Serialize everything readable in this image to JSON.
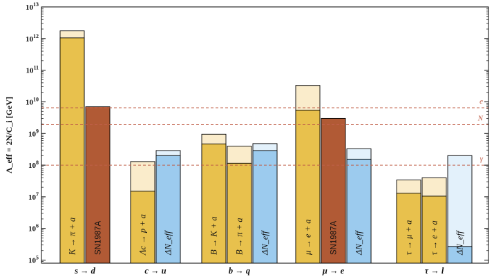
{
  "chart_data": {
    "type": "bar",
    "ylabel": "Λ_eff = 2N/C_i [GeV]",
    "yscale": "log",
    "ylim": [
      80000,
      10000000000000
    ],
    "ytick_exponents": [
      5,
      6,
      7,
      8,
      9,
      10,
      11,
      12,
      13
    ],
    "ytick_base": "10",
    "colors": {
      "meson_bound": "#e8c14d",
      "meson_projection": "#faeccb",
      "sn1987a": "#b15a35",
      "neff_bound": "#9ccbee",
      "neff_projection": "#e3f1fb",
      "reference_line": "#c0604a"
    },
    "reference_lines": [
      {
        "label": "e",
        "value": 6500000000
      },
      {
        "label": "N",
        "value": 1900000000
      },
      {
        "label": "γ",
        "value": 100000000
      }
    ],
    "groups": [
      {
        "category": "s → d",
        "bars": [
          {
            "label": "K → π + a",
            "kind": "meson",
            "value": 1050000000000,
            "projection": 1750000000000
          },
          {
            "label": "SN1987A",
            "kind": "sn1987a",
            "value": 7000000000,
            "projection": null
          }
        ]
      },
      {
        "category": "c → u",
        "bars": [
          {
            "label": "Λc → p + a",
            "kind": "meson",
            "value": 15000000,
            "projection": 130000000
          },
          {
            "label": "ΔN_eff",
            "kind": "neff",
            "value": 200000000,
            "projection": 290000000
          }
        ]
      },
      {
        "category": "b → q",
        "bars": [
          {
            "label": "B → K + a",
            "kind": "meson",
            "value": 470000000,
            "projection": 950000000
          },
          {
            "label": "B → π + a",
            "kind": "meson",
            "value": 115000000,
            "projection": 400000000
          },
          {
            "label": "ΔN_eff",
            "kind": "neff",
            "value": 290000000,
            "projection": 480000000
          }
        ]
      },
      {
        "category": "μ → e",
        "bars": [
          {
            "label": "μ → e + a",
            "kind": "meson",
            "value": 5500000000,
            "projection": 33000000000
          },
          {
            "label": "SN1987A",
            "kind": "sn1987a",
            "value": 3000000000,
            "projection": null
          },
          {
            "label": "ΔN_eff",
            "kind": "neff",
            "value": 155000000,
            "projection": 330000000
          }
        ]
      },
      {
        "category": "τ → l",
        "bars": [
          {
            "label": "τ → μ + a",
            "kind": "meson",
            "value": 13000000,
            "projection": 34000000
          },
          {
            "label": "τ → e + a",
            "kind": "meson",
            "value": 10500000,
            "projection": 40000000
          },
          {
            "label": "ΔN_eff",
            "kind": "neff",
            "value": 270000,
            "projection": 200000000
          }
        ]
      }
    ]
  }
}
